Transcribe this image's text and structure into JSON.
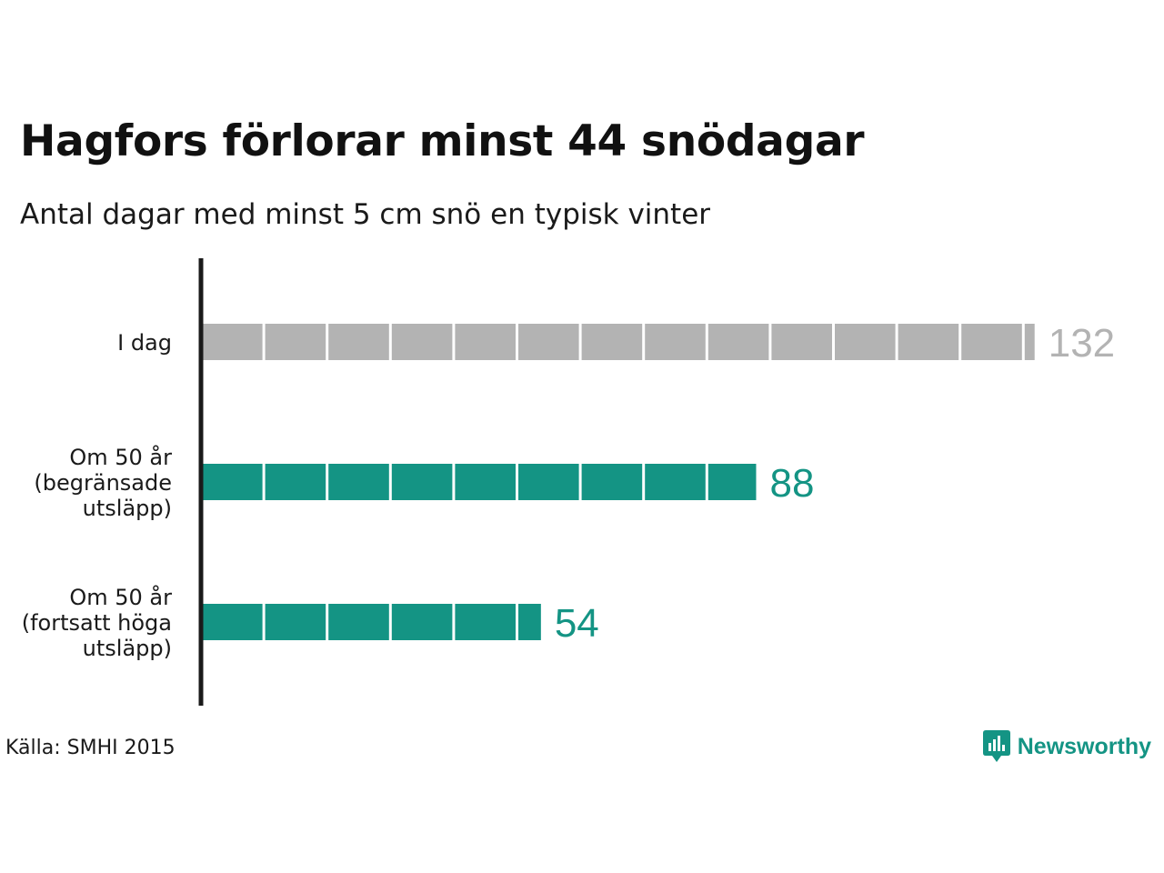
{
  "header": {
    "title": "Hagfors förlorar minst 44 snödagar",
    "subtitle": "Antal dagar med minst 5 cm snö en typisk vinter"
  },
  "footer": {
    "source": "Källa: SMHI 2015",
    "brand": "Newsworthy",
    "brand_icon": "newsworthy-chart-bubble-icon"
  },
  "colors": {
    "today": "#b3b3b3",
    "future": "#149484",
    "axis": "#1a1a1a",
    "brand": "#149484"
  },
  "chart_data": {
    "type": "bar",
    "orientation": "horizontal",
    "title": "Hagfors förlorar minst 44 snödagar",
    "subtitle": "Antal dagar med minst 5 cm snö en typisk vinter",
    "xlim": [
      0,
      132
    ],
    "grid": false,
    "legend": "none",
    "unit_block_size": 10,
    "categories": [
      [
        "I dag"
      ],
      [
        "Om 50 år",
        "(begränsade",
        "utsläpp)"
      ],
      [
        "Om 50 år",
        "(fortsatt höga",
        "utsläpp)"
      ]
    ],
    "values": [
      132,
      88,
      54
    ],
    "data_labels": [
      "132",
      "88",
      "54"
    ],
    "bar_colors": [
      "#b3b3b3",
      "#149484",
      "#149484"
    ],
    "source": "Källa: SMHI 2015"
  }
}
